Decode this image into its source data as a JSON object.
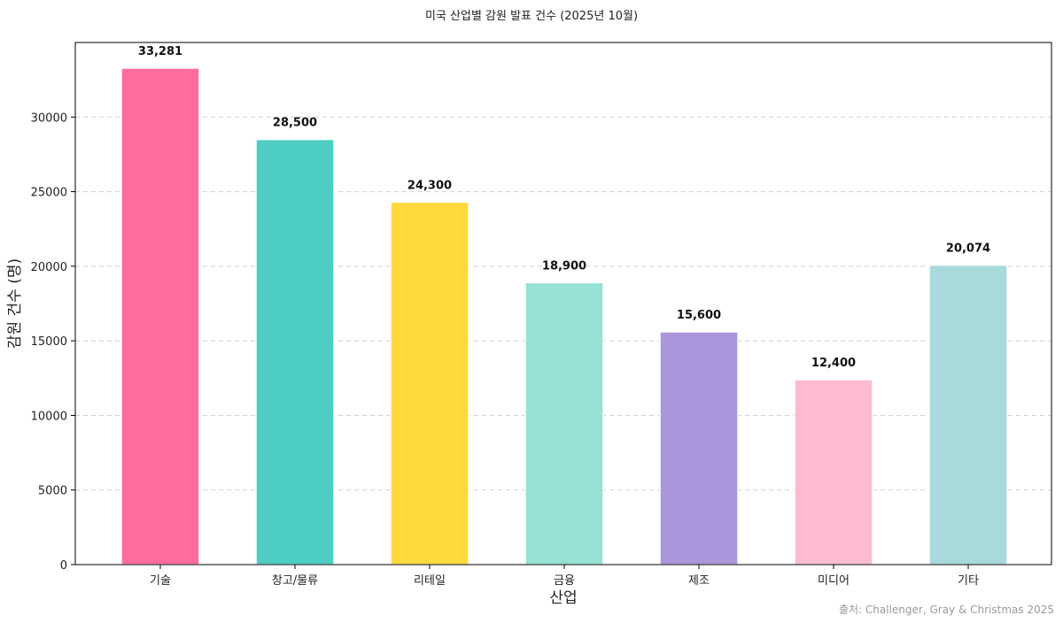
{
  "chart_data": {
    "type": "bar",
    "title": "미국 산업별 감원 발표 건수 (2025년 10월)",
    "xlabel": "산업",
    "ylabel": "감원 건수 (명)",
    "categories": [
      "기술",
      "창고/물류",
      "리테일",
      "금융",
      "제조",
      "미디어",
      "기타"
    ],
    "values": [
      33281,
      28500,
      24300,
      18900,
      15600,
      12400,
      20074
    ],
    "value_labels": [
      "33,281",
      "28,500",
      "24,300",
      "18,900",
      "15,600",
      "12,400",
      "20,074"
    ],
    "colors": [
      "#ff6b9d",
      "#4ecdc4",
      "#ffd93d",
      "#95e1d3",
      "#aa96da",
      "#fcbad3",
      "#a8dadc"
    ],
    "ylim": [
      0,
      35000
    ],
    "yticks": [
      0,
      5000,
      10000,
      15000,
      20000,
      25000,
      30000
    ],
    "grid": "y-dashed",
    "legend": "none"
  },
  "source": "출처: Challenger, Gray & Christmas 2025"
}
